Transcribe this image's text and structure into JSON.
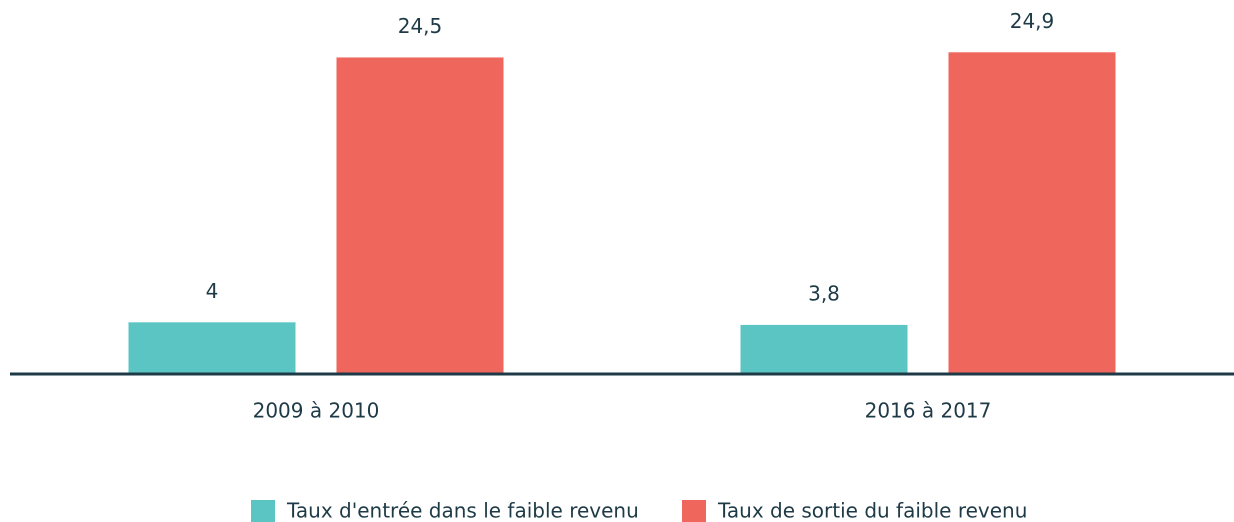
{
  "chart_data": {
    "type": "bar",
    "categories": [
      "2009 à 2010",
      "2016 à 2017"
    ],
    "series": [
      {
        "name": "Taux d'entrée dans le faible revenu",
        "color": "#5bc5c4",
        "values": [
          4,
          3.8
        ],
        "value_labels": [
          "4",
          "3,8"
        ]
      },
      {
        "name": "Taux de sortie du faible revenu",
        "color": "#ef665c",
        "values": [
          24.5,
          24.9
        ],
        "value_labels": [
          "24,5",
          "24,9"
        ]
      }
    ],
    "ylim": [
      0,
      25
    ],
    "legend": "bottom"
  }
}
